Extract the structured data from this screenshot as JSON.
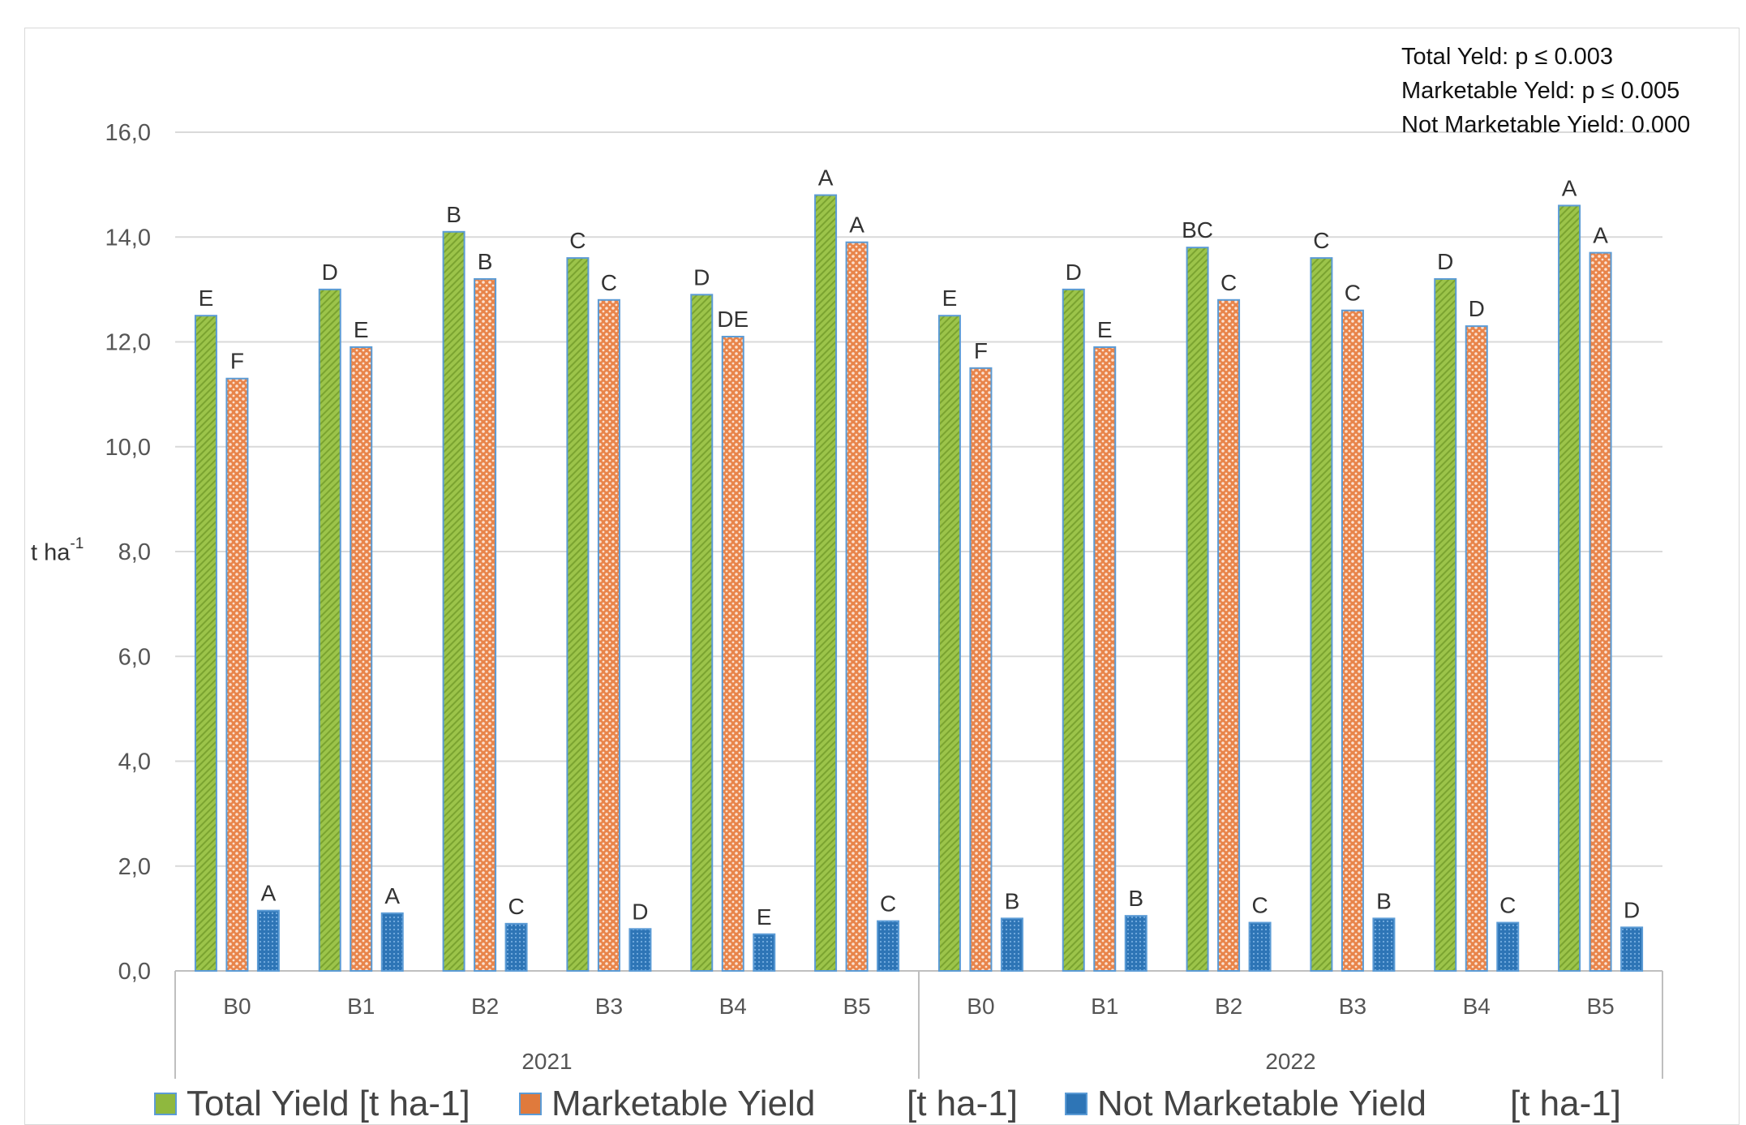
{
  "chart_data": {
    "type": "bar",
    "title": "",
    "ylabel": "t ha",
    "ylabel_superscript": "-1",
    "ylim": [
      0,
      16
    ],
    "yticks": [
      0,
      2,
      4,
      6,
      8,
      10,
      12,
      14,
      16
    ],
    "ytick_labels": [
      "0,0",
      "2,0",
      "4,0",
      "6,0",
      "8,0",
      "10,0",
      "12,0",
      "14,0",
      "16,0"
    ],
    "grid": true,
    "legend_position": "bottom",
    "groups": [
      "2021",
      "2022"
    ],
    "categories": [
      "B0",
      "B1",
      "B2",
      "B3",
      "B4",
      "B5",
      "B0",
      "B1",
      "B2",
      "B3",
      "B4",
      "B5"
    ],
    "category_group": [
      "2021",
      "2021",
      "2021",
      "2021",
      "2021",
      "2021",
      "2022",
      "2022",
      "2022",
      "2022",
      "2022",
      "2022"
    ],
    "series": [
      {
        "name": "Total Yield [t ha-1]",
        "color": "#8fb83e",
        "values": [
          12.5,
          13.0,
          14.1,
          13.6,
          12.9,
          14.8,
          12.5,
          13.0,
          13.8,
          13.6,
          13.2,
          14.6
        ],
        "letters": [
          "E",
          "D",
          "B",
          "C",
          "D",
          "A",
          "E",
          "D",
          "BC",
          "C",
          "D",
          "A"
        ]
      },
      {
        "name": "Marketable Yield [t ha-1]",
        "color": "#e07a3c",
        "values": [
          11.3,
          11.9,
          13.2,
          12.8,
          12.1,
          13.9,
          11.5,
          11.9,
          12.8,
          12.6,
          12.3,
          13.7
        ],
        "letters": [
          "F",
          "E",
          "B",
          "C",
          "DE",
          "A",
          "F",
          "E",
          "C",
          "C",
          "D",
          "A"
        ]
      },
      {
        "name": "Not Marketable Yield [t ha-1]",
        "color": "#2e75b6",
        "values": [
          1.15,
          1.1,
          0.9,
          0.8,
          0.7,
          0.95,
          1.0,
          1.05,
          0.92,
          1.0,
          0.92,
          0.83
        ],
        "letters": [
          "A",
          "A",
          "C",
          "D",
          "E",
          "C",
          "B",
          "B",
          "C",
          "B",
          "C",
          "D"
        ]
      }
    ],
    "annotations": [
      "Total Yeld: p ≤ 0.003",
      "Marketable Yeld: p ≤ 0.005",
      "Not Marketable Yield: 0.000"
    ]
  },
  "legend": {
    "items": [
      {
        "label": "Total Yield [t ha-1]",
        "unit": ""
      },
      {
        "label": "Marketable Yield",
        "unit": "[t ha-1]"
      },
      {
        "label": "Not Marketable Yield",
        "unit": "[t ha-1]"
      }
    ]
  }
}
